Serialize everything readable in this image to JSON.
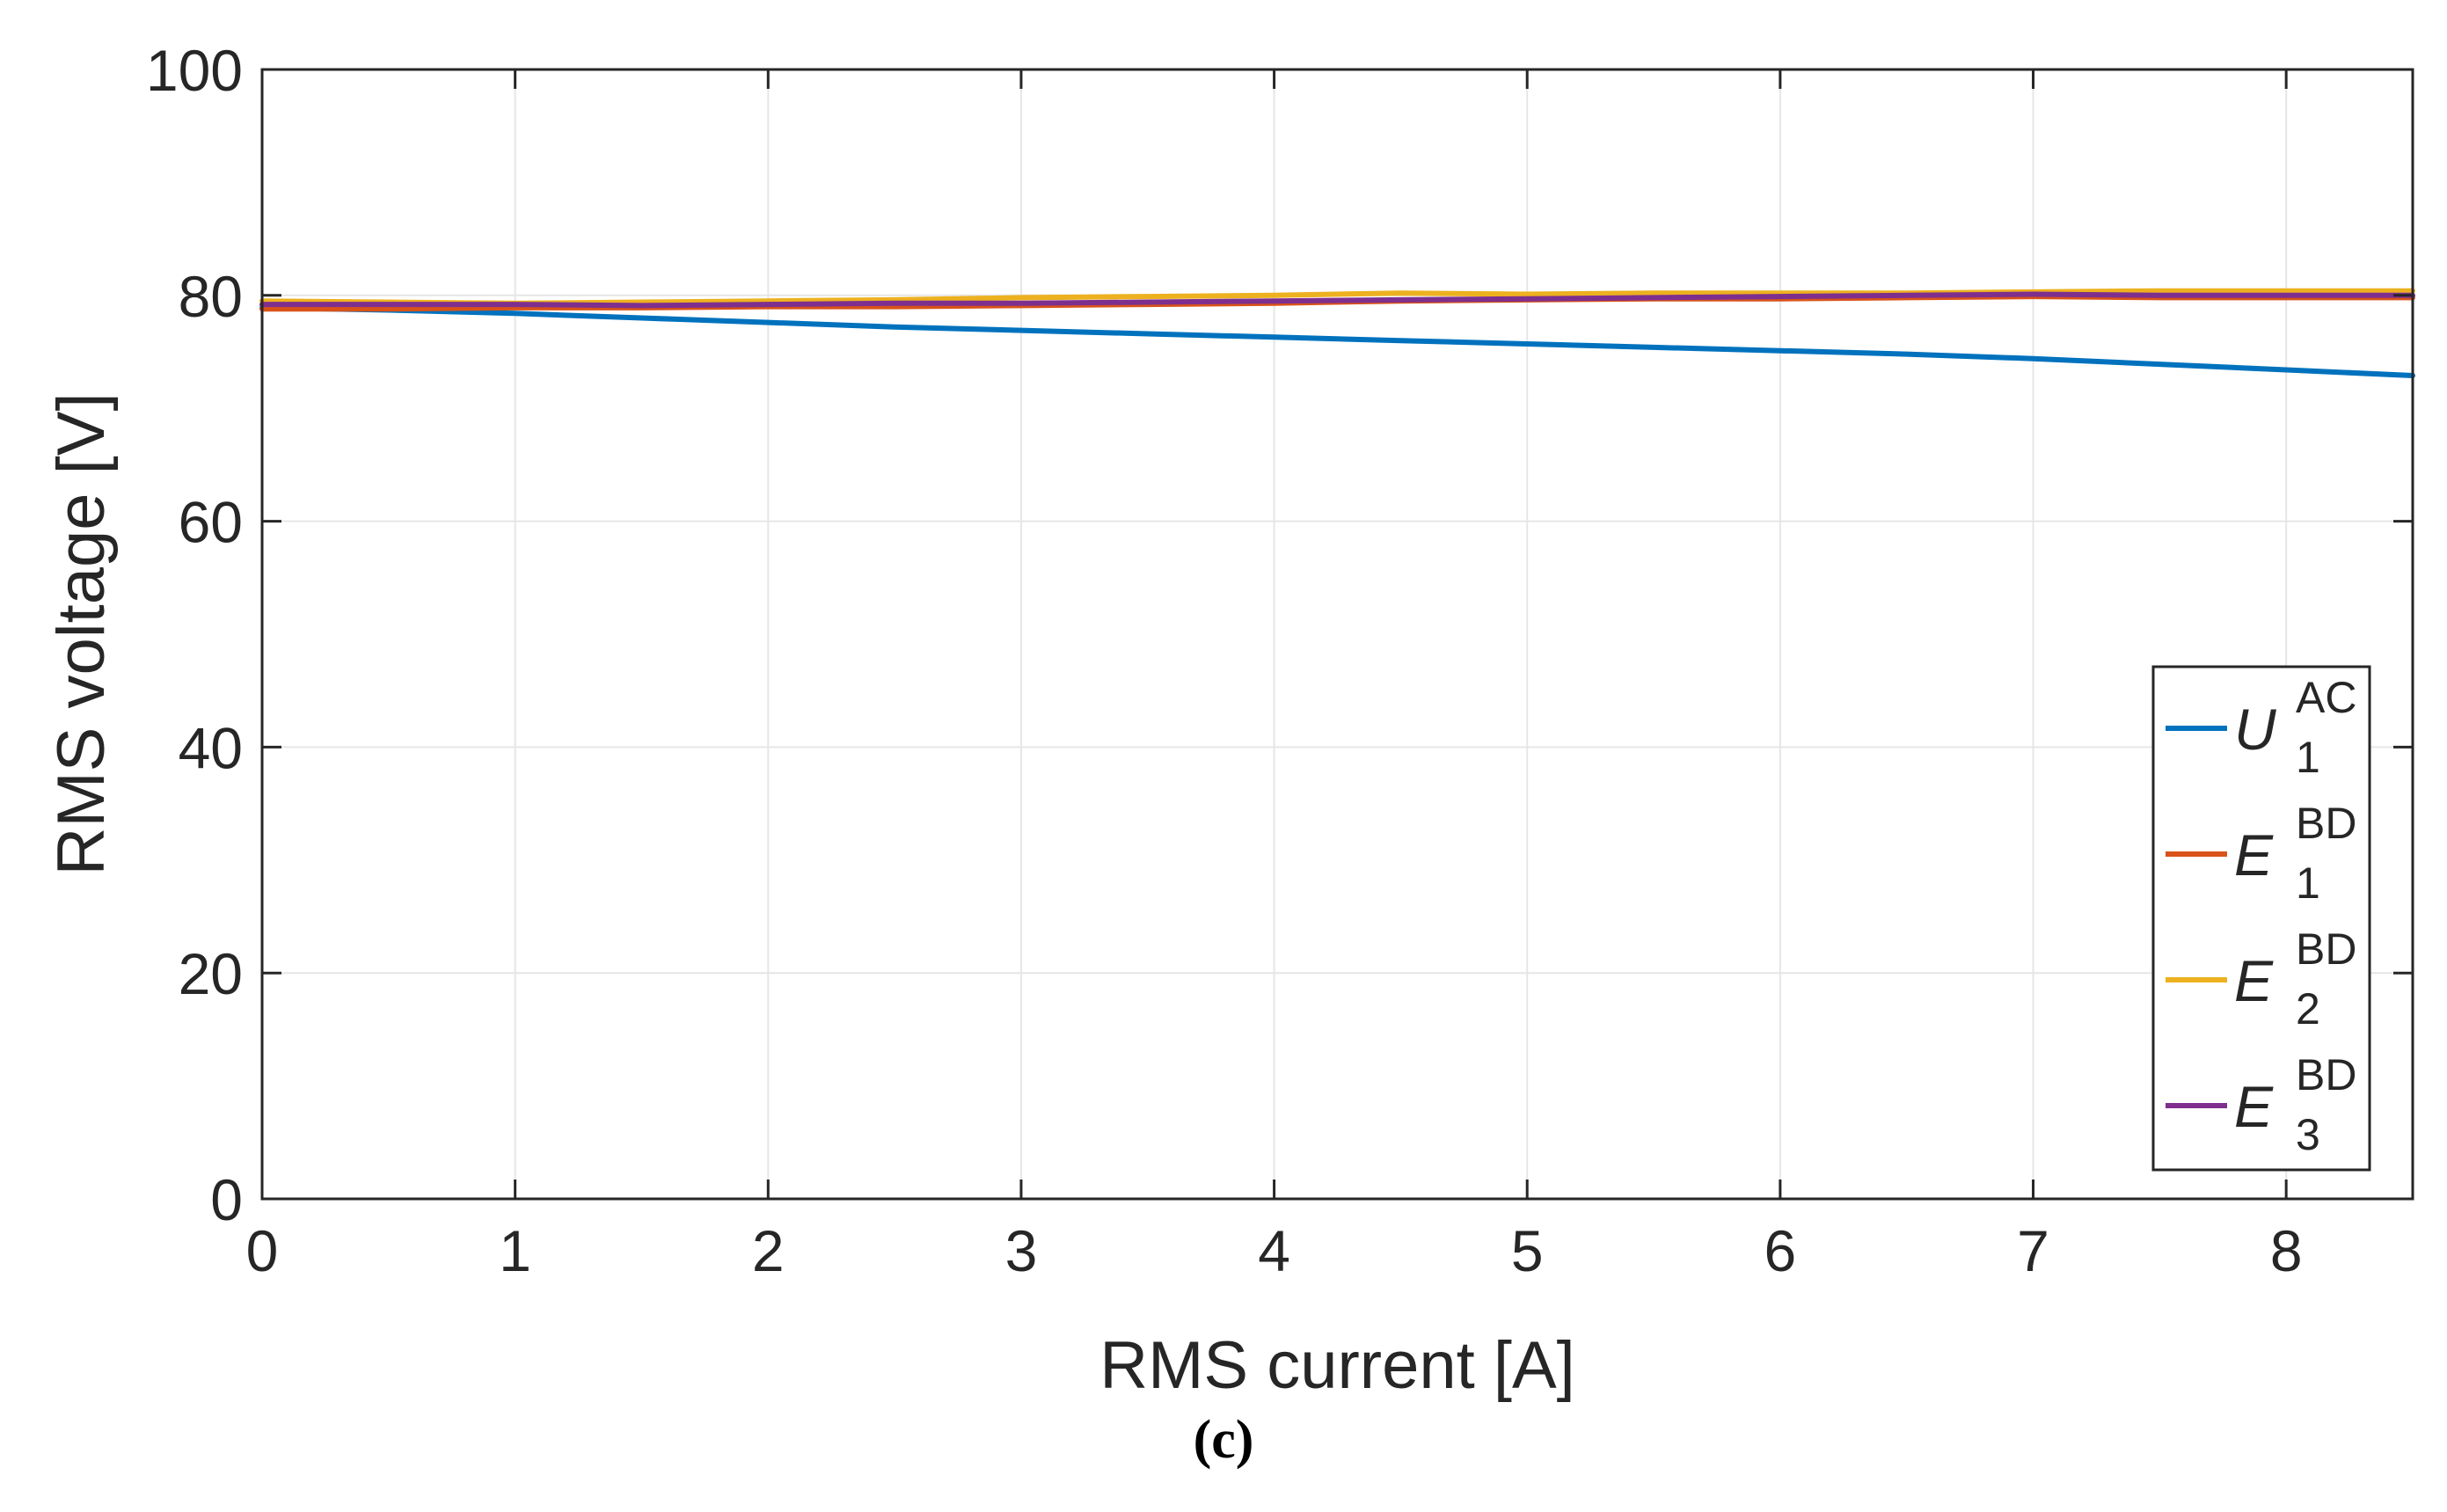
{
  "caption": "(c)",
  "chart_data": {
    "type": "line",
    "xlabel": "RMS current  [A]",
    "ylabel": "RMS voltage [V]",
    "xlim": [
      0,
      8.5
    ],
    "ylim": [
      0,
      100
    ],
    "xticks": [
      0,
      1,
      2,
      3,
      4,
      5,
      6,
      7,
      8
    ],
    "yticks": [
      0,
      20,
      40,
      60,
      80,
      100
    ],
    "grid": true,
    "legend_position": "right",
    "series": [
      {
        "name": "U",
        "sup": "AC",
        "sub": "1",
        "color": "#0072BD",
        "x": [
          0,
          0.5,
          1,
          1.5,
          2,
          2.5,
          3,
          3.5,
          4,
          4.5,
          5,
          5.5,
          6,
          6.5,
          7,
          7.5,
          8,
          8.5
        ],
        "y": [
          78.9,
          78.7,
          78.4,
          78.0,
          77.6,
          77.2,
          76.9,
          76.6,
          76.3,
          76.0,
          75.7,
          75.4,
          75.1,
          74.8,
          74.4,
          73.9,
          73.4,
          72.9
        ]
      },
      {
        "name": "E",
        "sup": "BD",
        "sub": "1",
        "color": "#D95319",
        "x": [
          0,
          0.5,
          1,
          1.5,
          2,
          2.5,
          3,
          3.5,
          4,
          4.5,
          5,
          5.5,
          6,
          6.5,
          7,
          7.5,
          8,
          8.5
        ],
        "y": [
          78.8,
          78.8,
          78.9,
          78.9,
          79.0,
          79.0,
          79.1,
          79.2,
          79.3,
          79.5,
          79.6,
          79.7,
          79.7,
          79.8,
          79.9,
          79.8,
          79.8,
          79.8
        ]
      },
      {
        "name": "E",
        "sup": "BD",
        "sub": "2",
        "color": "#EDB120",
        "x": [
          0,
          0.5,
          1,
          1.5,
          2,
          2.5,
          3,
          3.5,
          4,
          4.5,
          5,
          5.5,
          6,
          6.5,
          7,
          7.5,
          8,
          8.5
        ],
        "y": [
          79.5,
          79.4,
          79.3,
          79.4,
          79.5,
          79.6,
          79.8,
          79.9,
          80.0,
          80.2,
          80.1,
          80.2,
          80.2,
          80.2,
          80.3,
          80.4,
          80.4,
          80.4
        ]
      },
      {
        "name": "E",
        "sup": "BD",
        "sub": "3",
        "color": "#7E2F8E",
        "x": [
          0,
          0.5,
          1,
          1.5,
          2,
          2.5,
          3,
          3.5,
          4,
          4.5,
          5,
          5.5,
          6,
          6.5,
          7,
          7.5,
          8,
          8.5
        ],
        "y": [
          79.2,
          79.2,
          79.2,
          79.1,
          79.2,
          79.3,
          79.3,
          79.4,
          79.5,
          79.6,
          79.7,
          79.8,
          79.9,
          80.0,
          80.1,
          80.0,
          80.0,
          80.0
        ]
      }
    ]
  }
}
